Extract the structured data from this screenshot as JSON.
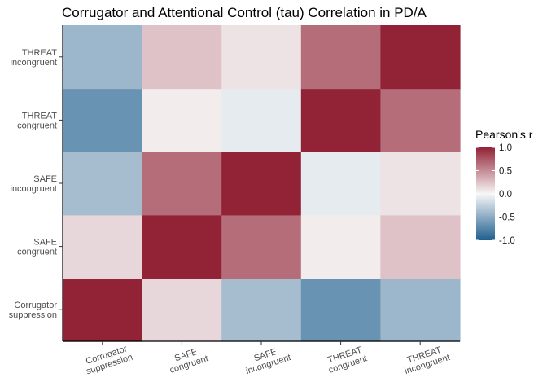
{
  "chart_data": {
    "type": "heatmap",
    "title": "Corrugator and Attentional Control (tau) Correlation in PD/A",
    "xlabel": "",
    "ylabel": "",
    "x_categories": [
      [
        "Corrugator",
        "suppression"
      ],
      [
        "SAFE",
        "congruent"
      ],
      [
        "SAFE",
        "incongruent"
      ],
      [
        "THREAT",
        "congruent"
      ],
      [
        "THREAT",
        "incongruent"
      ]
    ],
    "y_categories": [
      [
        "Corrugator",
        "suppression"
      ],
      [
        "SAFE",
        "congruent"
      ],
      [
        "SAFE",
        "incongruent"
      ],
      [
        "THREAT",
        "congruent"
      ],
      [
        "THREAT",
        "incongruent"
      ]
    ],
    "values": [
      [
        1.0,
        0.15,
        -0.38,
        -0.66,
        -0.42
      ],
      [
        0.15,
        1.0,
        0.65,
        0.05,
        0.25
      ],
      [
        -0.38,
        0.65,
        1.0,
        -0.08,
        0.1
      ],
      [
        -0.66,
        0.05,
        -0.08,
        1.0,
        0.65
      ],
      [
        -0.42,
        0.25,
        0.1,
        0.65,
        1.0
      ]
    ],
    "legend": {
      "title": "Pearson's r",
      "ticks": [
        "1.0",
        "0.5",
        "0.0",
        "-0.5",
        "-1.0"
      ],
      "tick_values": [
        1.0,
        0.5,
        0.0,
        -0.5,
        -1.0
      ],
      "range": [
        -1,
        1
      ],
      "placement": "right"
    },
    "colors": {
      "low": "#1f5f8f",
      "mid": "#f7f7f7",
      "high": "#922236"
    },
    "grid": false
  }
}
